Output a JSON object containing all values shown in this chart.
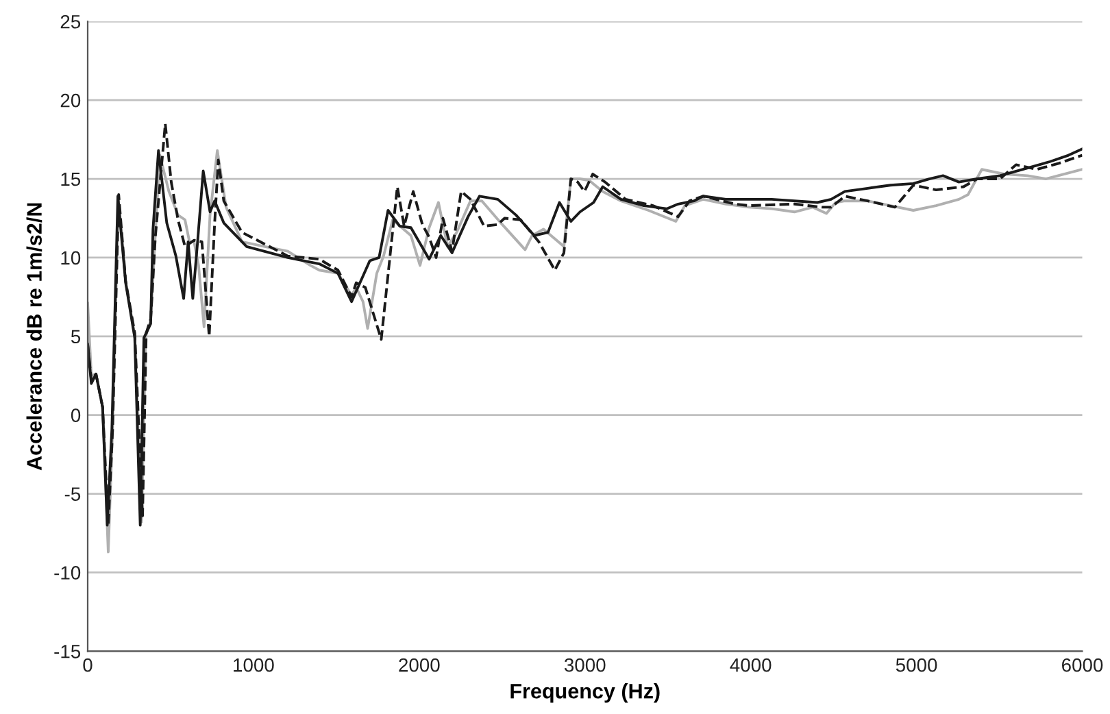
{
  "chart_data": {
    "type": "line",
    "xlabel": "Frequency (Hz)",
    "ylabel": "Accelerance dB re 1m/s2/N",
    "xlim": [
      0,
      6000
    ],
    "ylim": [
      -15,
      25
    ],
    "xticks": [
      0,
      1000,
      2000,
      3000,
      4000,
      5000,
      6000
    ],
    "yticks": [
      -15,
      -10,
      -5,
      0,
      5,
      10,
      15,
      20,
      25
    ],
    "grid": "y",
    "marker": "none",
    "series": [
      {
        "color": "#b0b0b0",
        "line_style": "solid",
        "x": [
          0,
          22,
          50,
          90,
          124,
          150,
          185,
          229,
          284,
          325,
          350,
          380,
          408,
          435,
          490,
          545,
          587,
          614,
          642,
          669,
          702,
          738,
          782,
          835,
          931,
          1069,
          1207,
          1344,
          1397,
          1510,
          1592,
          1620,
          1661,
          1689,
          1744,
          1785,
          1840,
          1950,
          2005,
          2060,
          2116,
          2171,
          2226,
          2309,
          2378,
          2501,
          2639,
          2681,
          2750,
          2873,
          2915,
          2970,
          3025,
          3107,
          3217,
          3383,
          3548,
          3603,
          3713,
          3851,
          3989,
          4127,
          4264,
          4374,
          4457,
          4512,
          4568,
          4705,
          4843,
          4981,
          5118,
          5256,
          5311,
          5394,
          5532,
          5670,
          5780,
          5890,
          6000
        ],
        "values": [
          7.1,
          2.5,
          2.6,
          0.5,
          -8.7,
          -1,
          13.8,
          8.5,
          5,
          -6.8,
          5,
          6,
          11.5,
          16.5,
          14.2,
          12.7,
          12.4,
          11,
          11,
          9.5,
          5.6,
          12.7,
          16.8,
          13.2,
          11,
          10.7,
          10.4,
          9.5,
          9.2,
          9.0,
          7.6,
          8.1,
          7.2,
          5.5,
          9.0,
          10.1,
          12.4,
          11.4,
          9.5,
          11.9,
          13.5,
          10.7,
          11.6,
          13.6,
          13.6,
          12.1,
          10.5,
          11.4,
          11.8,
          10.7,
          15.0,
          15.0,
          14.9,
          14.2,
          13.6,
          13.0,
          12.3,
          13.3,
          13.7,
          13.4,
          13.2,
          13.1,
          12.9,
          13.2,
          12.8,
          13.5,
          13.6,
          13.6,
          13.3,
          13.0,
          13.3,
          13.7,
          14.0,
          15.6,
          15.3,
          15.2,
          15.0,
          15.3,
          15.6
        ]
      },
      {
        "color": "#1a1a1a",
        "line_style": "dashed",
        "x": [
          0,
          22,
          50,
          90,
          124,
          150,
          187,
          229,
          284,
          331,
          353,
          380,
          408,
          468,
          504,
          545,
          587,
          642,
          689,
          733,
          766,
          788,
          821,
          931,
          1207,
          1397,
          1510,
          1592,
          1620,
          1675,
          1771,
          1868,
          1909,
          1964,
          2019,
          2060,
          2102,
          2143,
          2198,
          2253,
          2309,
          2391,
          2474,
          2515,
          2612,
          2722,
          2818,
          2873,
          2915,
          2956,
          2997,
          3047,
          3121,
          3245,
          3410,
          3562,
          3631,
          3713,
          3906,
          3989,
          4264,
          4430,
          4485,
          4568,
          4705,
          4870,
          4981,
          5118,
          5284,
          5366,
          5504,
          5601,
          5725,
          5862,
          6000
        ],
        "values": [
          4.5,
          2.2,
          2.6,
          0.5,
          -7.0,
          -1,
          14.0,
          8.5,
          5.2,
          -6.4,
          5.2,
          6.1,
          11.3,
          18.5,
          14.8,
          12.4,
          10.7,
          11.1,
          11,
          5.0,
          12.2,
          16.2,
          13.6,
          11.6,
          10.1,
          9.9,
          9.2,
          7.5,
          8.4,
          8.1,
          4.8,
          14.5,
          12,
          14.2,
          12.1,
          11.3,
          10,
          12.5,
          10.4,
          14.2,
          13.7,
          12.0,
          12.1,
          12.5,
          12.4,
          11,
          9.2,
          10.3,
          15.0,
          14.8,
          14.2,
          15.3,
          14.8,
          13.7,
          13.3,
          12.6,
          13.6,
          13.9,
          13.4,
          13.3,
          13.4,
          13.2,
          13.2,
          13.9,
          13.6,
          13.2,
          14.6,
          14.3,
          14.5,
          15.0,
          15.0,
          15.9,
          15.6,
          16.0,
          16.5
        ]
      },
      {
        "color": "#1a1a1a",
        "line_style": "solid",
        "x": [
          0,
          22,
          50,
          90,
          118,
          146,
          182,
          229,
          284,
          317,
          339,
          380,
          394,
          427,
          477,
          532,
          579,
          606,
          634,
          663,
          697,
          738,
          766,
          821,
          959,
          1207,
          1397,
          1510,
          1592,
          1702,
          1758,
          1812,
          1882,
          1950,
          2060,
          2130,
          2198,
          2295,
          2364,
          2474,
          2584,
          2694,
          2777,
          2846,
          2915,
          2970,
          3052,
          3107,
          3217,
          3355,
          3493,
          3562,
          3658,
          3713,
          3851,
          4127,
          4402,
          4485,
          4568,
          4705,
          4843,
          4981,
          5077,
          5160,
          5256,
          5366,
          5504,
          5642,
          5807,
          5917,
          6000
        ],
        "values": [
          4.5,
          2.0,
          2.6,
          0.5,
          -7,
          -0.9,
          13.9,
          8.4,
          4.9,
          -7,
          4.9,
          5.8,
          11.8,
          16.8,
          12.2,
          10.1,
          7.4,
          11.0,
          7.4,
          11,
          15.5,
          12.9,
          13.6,
          12.2,
          10.7,
          10,
          9.6,
          9,
          7.2,
          9.8,
          10,
          13,
          12,
          11.9,
          9.9,
          11.4,
          10.3,
          12.6,
          13.9,
          13.7,
          12.7,
          11.4,
          11.6,
          13.5,
          12.3,
          12.9,
          13.5,
          14.5,
          13.7,
          13.3,
          13.1,
          13.4,
          13.6,
          13.9,
          13.7,
          13.7,
          13.5,
          13.7,
          14.2,
          14.4,
          14.6,
          14.7,
          15.0,
          15.2,
          14.8,
          15.0,
          15.2,
          15.6,
          16.1,
          16.5,
          16.9
        ]
      }
    ]
  }
}
